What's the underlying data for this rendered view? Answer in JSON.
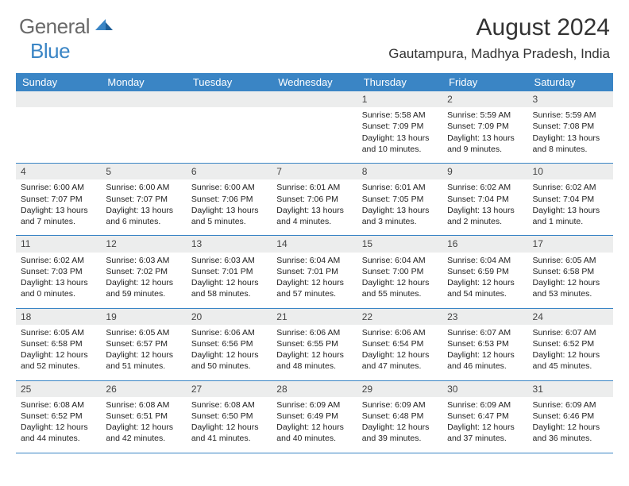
{
  "logo": {
    "general": "General",
    "blue": "Blue"
  },
  "title": "August 2024",
  "location": "Gautampura, Madhya Pradesh, India",
  "colors": {
    "accent": "#3a85c5",
    "band": "#eceded",
    "text": "#222222",
    "logo_gray": "#6a6a6a"
  },
  "day_headers": [
    "Sunday",
    "Monday",
    "Tuesday",
    "Wednesday",
    "Thursday",
    "Friday",
    "Saturday"
  ],
  "weeks": [
    [
      {
        "n": "",
        "sr": "",
        "ss": "",
        "dl": ""
      },
      {
        "n": "",
        "sr": "",
        "ss": "",
        "dl": ""
      },
      {
        "n": "",
        "sr": "",
        "ss": "",
        "dl": ""
      },
      {
        "n": "",
        "sr": "",
        "ss": "",
        "dl": ""
      },
      {
        "n": "1",
        "sr": "Sunrise: 5:58 AM",
        "ss": "Sunset: 7:09 PM",
        "dl": "Daylight: 13 hours and 10 minutes."
      },
      {
        "n": "2",
        "sr": "Sunrise: 5:59 AM",
        "ss": "Sunset: 7:09 PM",
        "dl": "Daylight: 13 hours and 9 minutes."
      },
      {
        "n": "3",
        "sr": "Sunrise: 5:59 AM",
        "ss": "Sunset: 7:08 PM",
        "dl": "Daylight: 13 hours and 8 minutes."
      }
    ],
    [
      {
        "n": "4",
        "sr": "Sunrise: 6:00 AM",
        "ss": "Sunset: 7:07 PM",
        "dl": "Daylight: 13 hours and 7 minutes."
      },
      {
        "n": "5",
        "sr": "Sunrise: 6:00 AM",
        "ss": "Sunset: 7:07 PM",
        "dl": "Daylight: 13 hours and 6 minutes."
      },
      {
        "n": "6",
        "sr": "Sunrise: 6:00 AM",
        "ss": "Sunset: 7:06 PM",
        "dl": "Daylight: 13 hours and 5 minutes."
      },
      {
        "n": "7",
        "sr": "Sunrise: 6:01 AM",
        "ss": "Sunset: 7:06 PM",
        "dl": "Daylight: 13 hours and 4 minutes."
      },
      {
        "n": "8",
        "sr": "Sunrise: 6:01 AM",
        "ss": "Sunset: 7:05 PM",
        "dl": "Daylight: 13 hours and 3 minutes."
      },
      {
        "n": "9",
        "sr": "Sunrise: 6:02 AM",
        "ss": "Sunset: 7:04 PM",
        "dl": "Daylight: 13 hours and 2 minutes."
      },
      {
        "n": "10",
        "sr": "Sunrise: 6:02 AM",
        "ss": "Sunset: 7:04 PM",
        "dl": "Daylight: 13 hours and 1 minute."
      }
    ],
    [
      {
        "n": "11",
        "sr": "Sunrise: 6:02 AM",
        "ss": "Sunset: 7:03 PM",
        "dl": "Daylight: 13 hours and 0 minutes."
      },
      {
        "n": "12",
        "sr": "Sunrise: 6:03 AM",
        "ss": "Sunset: 7:02 PM",
        "dl": "Daylight: 12 hours and 59 minutes."
      },
      {
        "n": "13",
        "sr": "Sunrise: 6:03 AM",
        "ss": "Sunset: 7:01 PM",
        "dl": "Daylight: 12 hours and 58 minutes."
      },
      {
        "n": "14",
        "sr": "Sunrise: 6:04 AM",
        "ss": "Sunset: 7:01 PM",
        "dl": "Daylight: 12 hours and 57 minutes."
      },
      {
        "n": "15",
        "sr": "Sunrise: 6:04 AM",
        "ss": "Sunset: 7:00 PM",
        "dl": "Daylight: 12 hours and 55 minutes."
      },
      {
        "n": "16",
        "sr": "Sunrise: 6:04 AM",
        "ss": "Sunset: 6:59 PM",
        "dl": "Daylight: 12 hours and 54 minutes."
      },
      {
        "n": "17",
        "sr": "Sunrise: 6:05 AM",
        "ss": "Sunset: 6:58 PM",
        "dl": "Daylight: 12 hours and 53 minutes."
      }
    ],
    [
      {
        "n": "18",
        "sr": "Sunrise: 6:05 AM",
        "ss": "Sunset: 6:58 PM",
        "dl": "Daylight: 12 hours and 52 minutes."
      },
      {
        "n": "19",
        "sr": "Sunrise: 6:05 AM",
        "ss": "Sunset: 6:57 PM",
        "dl": "Daylight: 12 hours and 51 minutes."
      },
      {
        "n": "20",
        "sr": "Sunrise: 6:06 AM",
        "ss": "Sunset: 6:56 PM",
        "dl": "Daylight: 12 hours and 50 minutes."
      },
      {
        "n": "21",
        "sr": "Sunrise: 6:06 AM",
        "ss": "Sunset: 6:55 PM",
        "dl": "Daylight: 12 hours and 48 minutes."
      },
      {
        "n": "22",
        "sr": "Sunrise: 6:06 AM",
        "ss": "Sunset: 6:54 PM",
        "dl": "Daylight: 12 hours and 47 minutes."
      },
      {
        "n": "23",
        "sr": "Sunrise: 6:07 AM",
        "ss": "Sunset: 6:53 PM",
        "dl": "Daylight: 12 hours and 46 minutes."
      },
      {
        "n": "24",
        "sr": "Sunrise: 6:07 AM",
        "ss": "Sunset: 6:52 PM",
        "dl": "Daylight: 12 hours and 45 minutes."
      }
    ],
    [
      {
        "n": "25",
        "sr": "Sunrise: 6:08 AM",
        "ss": "Sunset: 6:52 PM",
        "dl": "Daylight: 12 hours and 44 minutes."
      },
      {
        "n": "26",
        "sr": "Sunrise: 6:08 AM",
        "ss": "Sunset: 6:51 PM",
        "dl": "Daylight: 12 hours and 42 minutes."
      },
      {
        "n": "27",
        "sr": "Sunrise: 6:08 AM",
        "ss": "Sunset: 6:50 PM",
        "dl": "Daylight: 12 hours and 41 minutes."
      },
      {
        "n": "28",
        "sr": "Sunrise: 6:09 AM",
        "ss": "Sunset: 6:49 PM",
        "dl": "Daylight: 12 hours and 40 minutes."
      },
      {
        "n": "29",
        "sr": "Sunrise: 6:09 AM",
        "ss": "Sunset: 6:48 PM",
        "dl": "Daylight: 12 hours and 39 minutes."
      },
      {
        "n": "30",
        "sr": "Sunrise: 6:09 AM",
        "ss": "Sunset: 6:47 PM",
        "dl": "Daylight: 12 hours and 37 minutes."
      },
      {
        "n": "31",
        "sr": "Sunrise: 6:09 AM",
        "ss": "Sunset: 6:46 PM",
        "dl": "Daylight: 12 hours and 36 minutes."
      }
    ]
  ]
}
